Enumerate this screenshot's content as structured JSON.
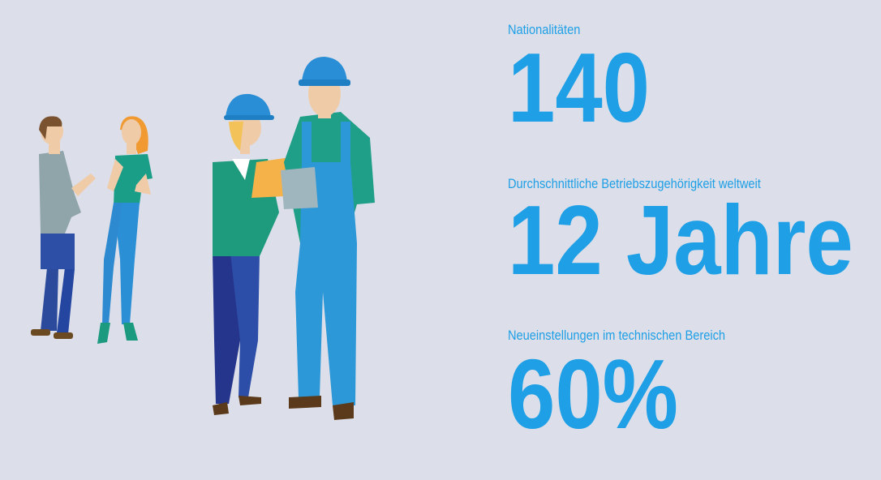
{
  "stats": [
    {
      "label": "Nationalitäten",
      "value": "140"
    },
    {
      "label": "Durchschnittliche Betriebszugehörigkeit weltweit",
      "value": "12 Jahre"
    },
    {
      "label": "Neueinstellungen im technischen Bereich",
      "value": "60%"
    }
  ]
}
